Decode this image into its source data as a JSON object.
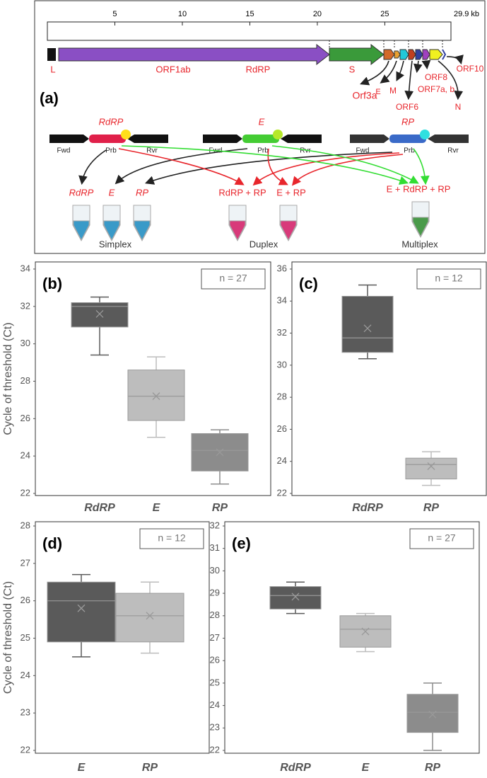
{
  "diagram": {
    "label": "(a)",
    "ruler": {
      "ticks": [
        5,
        10,
        15,
        20,
        25
      ],
      "end": {
        "value": 29.9,
        "label": "29.9 kb"
      }
    },
    "genes": [
      "L",
      "ORF1ab",
      "RdRP",
      "S",
      "Orf3a",
      "E",
      "M",
      "ORF6",
      "ORF7a, b",
      "ORF8",
      "ORF10",
      "N"
    ],
    "targets": [
      "RdRP",
      "E",
      "RP"
    ],
    "primer_parts": [
      "Fwd",
      "Prb",
      "Rvr"
    ],
    "tubes": [
      "RdRP",
      "E",
      "RP",
      "RdRP + RP",
      "E + RP",
      "E + RdRP + RP"
    ],
    "assays": [
      "Simplex",
      "Duplex",
      "Multiplex"
    ]
  },
  "chart_data": [
    {
      "type": "box",
      "label": "(b)",
      "annotation": "n = 27",
      "ylabel": "Cycle of threshold (Ct)",
      "ylim": [
        22,
        34
      ],
      "yticks": [
        22,
        24,
        26,
        28,
        30,
        32,
        34
      ],
      "categories": [
        "RdRP",
        "E",
        "RP"
      ],
      "colors": [
        "#5a5a5a",
        "#bdbdbd",
        "#8c8c8c"
      ],
      "boxes": [
        {
          "min": 29.4,
          "q1": 30.9,
          "median": 32.0,
          "q3": 32.2,
          "max": 32.5,
          "mean": 31.6
        },
        {
          "min": 25.0,
          "q1": 25.9,
          "median": 27.2,
          "q3": 28.6,
          "max": 29.3,
          "mean": 27.2
        },
        {
          "min": 22.5,
          "q1": 23.2,
          "median": 24.3,
          "q3": 25.2,
          "max": 25.4,
          "mean": 24.2
        }
      ]
    },
    {
      "type": "box",
      "label": "(c)",
      "annotation": "n = 12",
      "ylim": [
        22,
        36
      ],
      "yticks": [
        22,
        24,
        26,
        28,
        30,
        32,
        34,
        36
      ],
      "categories": [
        "RdRP",
        "RP"
      ],
      "colors": [
        "#5a5a5a",
        "#bdbdbd"
      ],
      "boxes": [
        {
          "min": 30.4,
          "q1": 30.8,
          "median": 31.7,
          "q3": 34.3,
          "max": 35.0,
          "mean": 32.3
        },
        {
          "min": 22.5,
          "q1": 22.9,
          "median": 23.8,
          "q3": 24.2,
          "max": 24.6,
          "mean": 23.7
        }
      ]
    },
    {
      "type": "box",
      "label": "(d)",
      "annotation": "n = 12",
      "ylabel": "Cycle of threshold (Ct)",
      "ylim": [
        22,
        28
      ],
      "yticks": [
        22,
        23,
        24,
        25,
        26,
        27,
        28
      ],
      "categories": [
        "E",
        "RP"
      ],
      "colors": [
        "#5a5a5a",
        "#bdbdbd"
      ],
      "boxes": [
        {
          "min": 24.5,
          "q1": 24.9,
          "median": 26.0,
          "q3": 26.5,
          "max": 26.7,
          "mean": 25.8
        },
        {
          "min": 24.6,
          "q1": 24.9,
          "median": 25.6,
          "q3": 26.2,
          "max": 26.5,
          "mean": 25.6
        }
      ]
    },
    {
      "type": "box",
      "label": "(e)",
      "annotation": "n = 27",
      "ylim": [
        22,
        32
      ],
      "yticks": [
        22,
        23,
        24,
        25,
        26,
        27,
        28,
        29,
        30,
        31,
        32
      ],
      "categories": [
        "RdRP",
        "E",
        "RP"
      ],
      "colors": [
        "#5a5a5a",
        "#bdbdbd",
        "#8c8c8c"
      ],
      "boxes": [
        {
          "min": 28.1,
          "q1": 28.3,
          "median": 28.9,
          "q3": 29.3,
          "max": 29.5,
          "mean": 28.85
        },
        {
          "min": 26.4,
          "q1": 26.6,
          "median": 27.4,
          "q3": 28.0,
          "max": 28.1,
          "mean": 27.3
        },
        {
          "min": 22.0,
          "q1": 22.8,
          "median": 23.7,
          "q3": 24.5,
          "max": 25.0,
          "mean": 23.6
        }
      ]
    }
  ]
}
